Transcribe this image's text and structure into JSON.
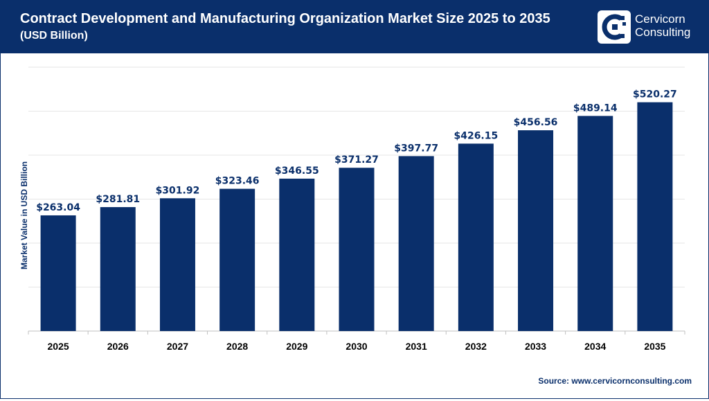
{
  "header": {
    "title": "Contract Development and Manufacturing Organization Market Size 2025 to 2035",
    "subtitle": "(USD Billion)",
    "brand_line1": "Cervicorn",
    "brand_line2": "Consulting",
    "logo_icon": "cervicorn-logo-icon"
  },
  "source": {
    "label": "Source:",
    "url": "www.cervicornconsulting.com"
  },
  "colors": {
    "header_bg": "#0a2f6b",
    "bar": "#0a2f6b",
    "label": "#0a2f6b",
    "grid": "#e6e6e6"
  },
  "chart_data": {
    "type": "bar",
    "title": "Contract Development and Manufacturing Organization Market Size 2025 to 2035",
    "subtitle": "(USD Billion)",
    "xlabel": "",
    "ylabel": "Market Value in USD Billion",
    "categories": [
      "2025",
      "2026",
      "2027",
      "2028",
      "2029",
      "2030",
      "2031",
      "2032",
      "2033",
      "2034",
      "2035"
    ],
    "values": [
      263.04,
      281.81,
      301.92,
      323.46,
      346.55,
      371.27,
      397.77,
      426.15,
      456.56,
      489.14,
      520.27
    ],
    "value_labels": [
      "$263.04",
      "$281.81",
      "$301.92",
      "$323.46",
      "$346.55",
      "$371.27",
      "$397.77",
      "$426.15",
      "$456.56",
      "$489.14",
      "$520.27"
    ],
    "ylim": [
      0,
      600
    ],
    "grid": true,
    "legend": "none"
  }
}
